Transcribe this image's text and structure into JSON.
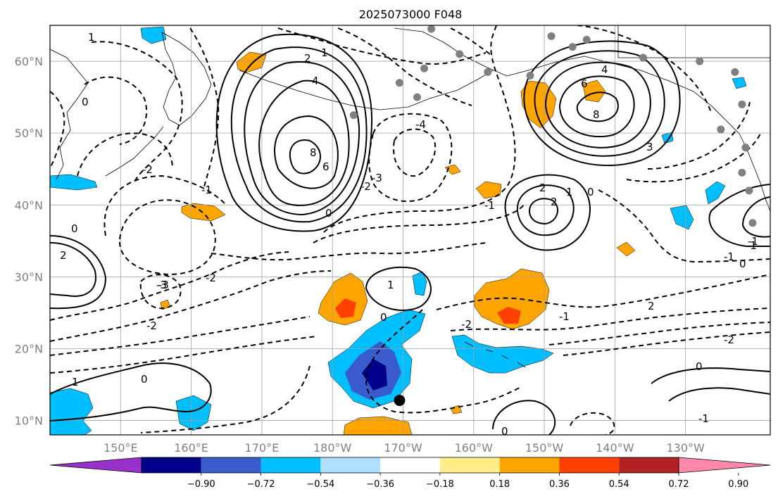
{
  "title": "2025073000 F048",
  "map": {
    "lon_labels": [
      "150°E",
      "160°E",
      "170°E",
      "180°W",
      "170°W",
      "160°W",
      "150°W",
      "140°W",
      "130°W"
    ],
    "lat_labels": [
      "60°N",
      "50°N",
      "40°N",
      "30°N",
      "20°N",
      "10°N"
    ],
    "lon_values": [
      150,
      160,
      170,
      180,
      190,
      200,
      210,
      220,
      230
    ],
    "lat_values": [
      60,
      50,
      40,
      30,
      20,
      10
    ],
    "lon_range": [
      140,
      242
    ],
    "lat_range": [
      8,
      65
    ],
    "grid": true,
    "contour_labels": [
      "2",
      "4",
      "6",
      "8",
      "1",
      "0",
      "-2",
      "-4",
      "-3",
      "-1",
      "2",
      "1",
      "0",
      "-1",
      "-2",
      "-3",
      "3",
      "6",
      "8",
      "4",
      "2",
      "1",
      "0",
      "-2",
      "-1",
      "0",
      "2",
      "-2",
      "-1",
      "0",
      "-3",
      "-2",
      "1",
      "0",
      "-1",
      "0",
      "-1",
      "2",
      "-2",
      "0",
      "-1",
      "0",
      "1"
    ],
    "markers": {
      "big_dot": {
        "lon": 189.5,
        "lat": 12.8
      },
      "grey_dots": [
        [
          189.5,
          57
        ],
        [
          193,
          59
        ],
        [
          198,
          61
        ],
        [
          192,
          55
        ],
        [
          183,
          52.5
        ],
        [
          202,
          58.5
        ],
        [
          208,
          58
        ],
        [
          214,
          62
        ],
        [
          216,
          63
        ],
        [
          211,
          63.5
        ],
        [
          224,
          60.5
        ],
        [
          232,
          60
        ],
        [
          237,
          58.5
        ],
        [
          238,
          54
        ],
        [
          235,
          50.5
        ],
        [
          238.5,
          48
        ],
        [
          238,
          44.5
        ],
        [
          239,
          42
        ],
        [
          239.5,
          37.5
        ],
        [
          194,
          64.5
        ]
      ]
    }
  },
  "colorbar": {
    "ticks": [
      "−0.90",
      "−0.72",
      "−0.54",
      "−0.36",
      "−0.18",
      "0.18",
      "0.36",
      "0.54",
      "0.72",
      "0.90"
    ],
    "colors": [
      "#9932cc",
      "#00008b",
      "#3a5bcc",
      "#00bfff",
      "#b0e0ff",
      "#ffffff",
      "#ffee88",
      "#ffa500",
      "#ff4000",
      "#b22222",
      "#ff88aa"
    ]
  }
}
